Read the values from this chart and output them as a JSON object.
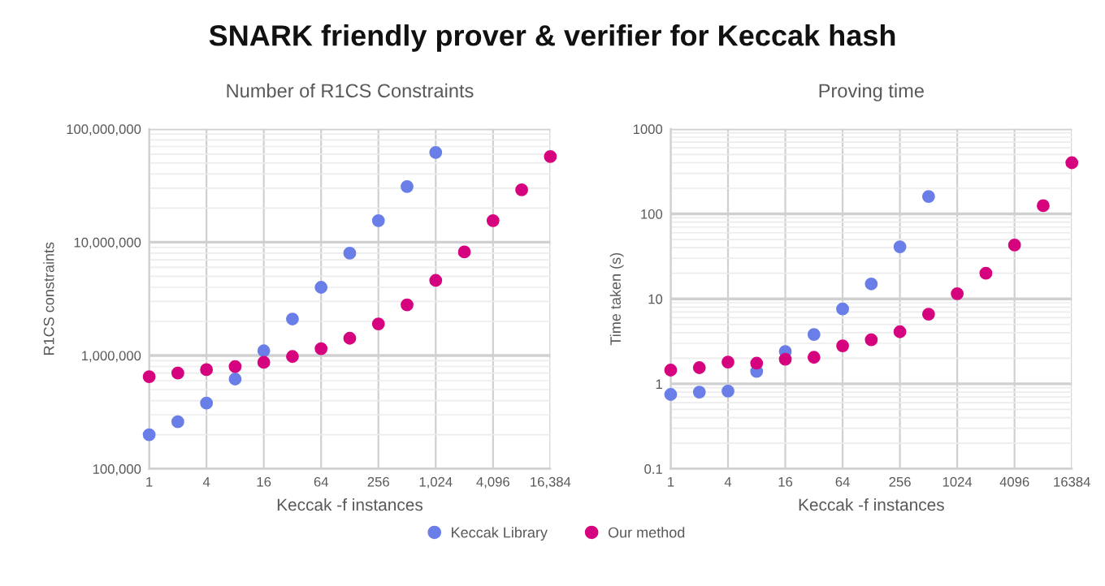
{
  "chart_data": [
    {
      "type": "scatter",
      "title": "Number of R1CS Constraints",
      "xlabel": "Keccak -f instances",
      "ylabel": "R1CS constraints",
      "annotations": [
        "SNARK friendly prover & verifier for Keccak hash"
      ],
      "log": "xy",
      "grid": true,
      "legend": "bottom",
      "marker": "circle",
      "xlim": [
        1,
        16384
      ],
      "xticks": [
        1,
        4,
        16,
        64,
        256,
        {
          "value": 1024,
          "label": "1,024"
        },
        {
          "value": 4096,
          "label": "4,096"
        },
        {
          "value": 16384,
          "label": "16,384"
        }
      ],
      "ylim": [
        100000,
        100000000
      ],
      "yticks": [
        {
          "value": 100000,
          "label": "100,000"
        },
        {
          "value": 1000000,
          "label": "1,000,000"
        },
        {
          "value": 10000000,
          "label": "10,000,000"
        },
        {
          "value": 100000000,
          "label": "100,000,000"
        }
      ],
      "series": [
        {
          "name": "Keccak Library",
          "color": "#6a7ee8",
          "x": [
            1,
            2,
            4,
            8,
            16,
            32,
            64,
            128,
            256,
            512,
            1024
          ],
          "values": [
            200000,
            260000,
            380000,
            620000,
            1100000,
            2100000,
            4000000,
            8000000,
            15500000,
            31000000,
            62000000
          ]
        },
        {
          "name": "Our method",
          "color": "#d6037f",
          "x": [
            1,
            2,
            4,
            8,
            16,
            32,
            64,
            128,
            256,
            512,
            1024,
            2048,
            4096,
            8192,
            16384
          ],
          "values": [
            650000,
            700000,
            750000,
            800000,
            870000,
            980000,
            1150000,
            1420000,
            1900000,
            2800000,
            4600000,
            8200000,
            15500000,
            29000000,
            57000000
          ]
        }
      ]
    },
    {
      "type": "scatter",
      "title": "Proving time",
      "xlabel": "Keccak -f instances",
      "ylabel": "Time taken (s)",
      "log": "xy",
      "grid": true,
      "legend": "bottom",
      "marker": "circle",
      "xlim": [
        1,
        16384
      ],
      "xticks": [
        1,
        4,
        16,
        64,
        256,
        1024,
        4096,
        16384
      ],
      "ylim": [
        0.1,
        1000
      ],
      "yticks": [
        0.1,
        1,
        10,
        100,
        1000
      ],
      "series": [
        {
          "name": "Keccak Library",
          "color": "#6a7ee8",
          "x": [
            1,
            2,
            4,
            8,
            16,
            32,
            64,
            128,
            256,
            512
          ],
          "values": [
            0.75,
            0.8,
            0.82,
            1.4,
            2.4,
            3.8,
            7.6,
            15,
            41,
            160
          ]
        },
        {
          "name": "Our method",
          "color": "#d6037f",
          "x": [
            1,
            2,
            4,
            8,
            16,
            32,
            64,
            128,
            256,
            512,
            1024,
            2048,
            4096,
            8192,
            16384
          ],
          "values": [
            1.45,
            1.55,
            1.8,
            1.75,
            1.95,
            2.05,
            2.8,
            3.3,
            4.1,
            6.6,
            11.5,
            20,
            43,
            125,
            400
          ]
        }
      ]
    }
  ]
}
